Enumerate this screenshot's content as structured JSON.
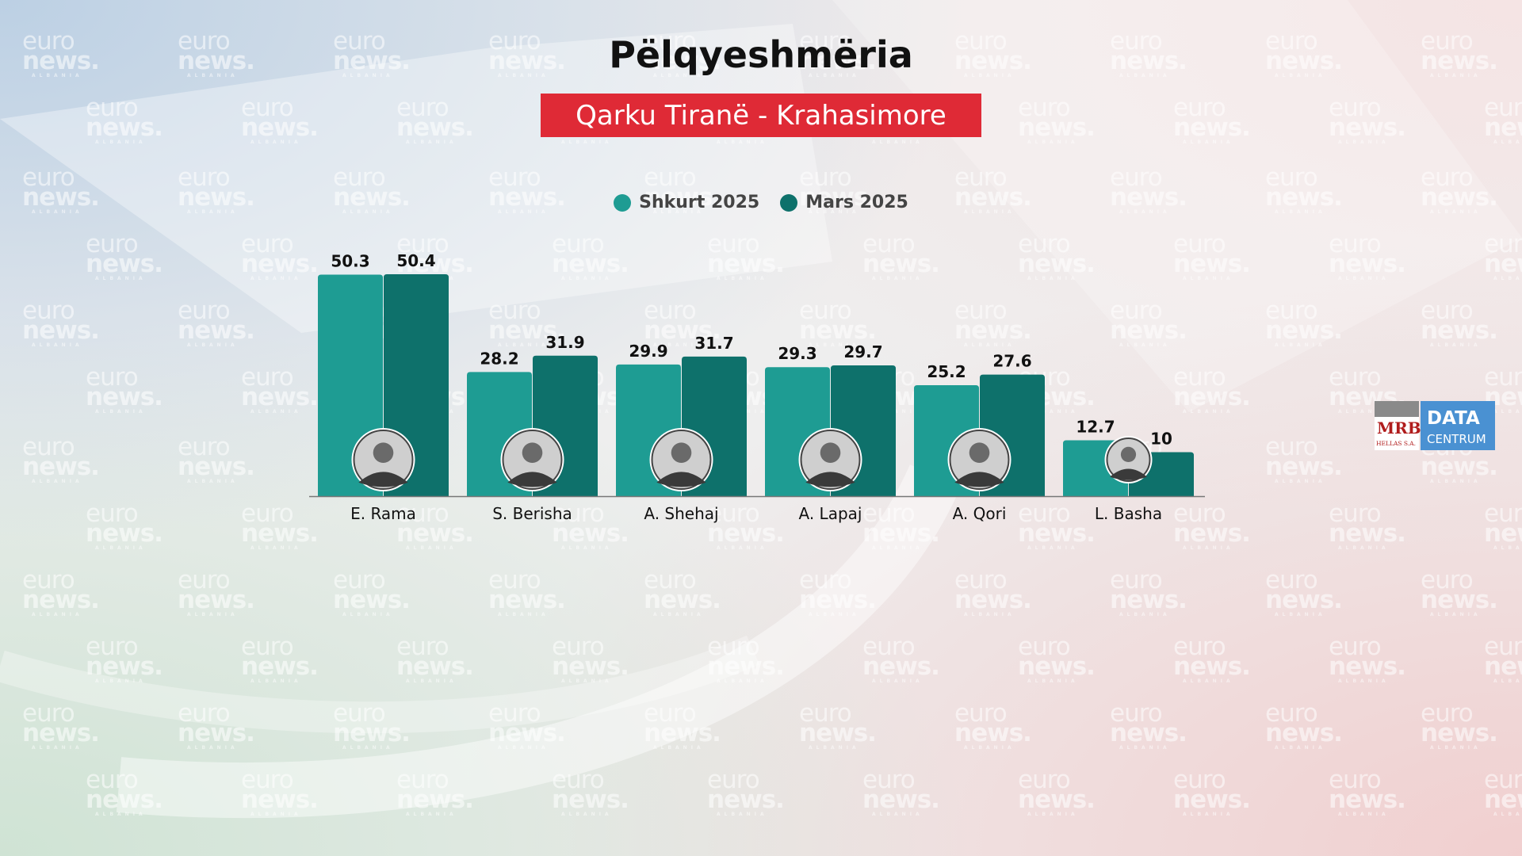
{
  "title": "Pëlqyeshmëria",
  "subtitle": "Qarku Tiranë - Krahasimore",
  "watermark": {
    "line1": "euro",
    "line2": "news.",
    "line3": "ALBANIA"
  },
  "logo": {
    "mrb": "MRB",
    "mrb_sub": "HELLAS S.A.",
    "data": "DATA",
    "centrum": "CENTRUM"
  },
  "colors": {
    "shkurt": "#1e9c93",
    "mars": "#0e716b",
    "subtitle_bg": "#df2a36"
  },
  "chart_data": {
    "type": "bar",
    "categories": [
      "E. Rama",
      "S. Berisha",
      "A. Shehaj",
      "A. Lapaj",
      "A. Qori",
      "L. Basha"
    ],
    "series": [
      {
        "name": "Shkurt 2025",
        "values": [
          50.3,
          28.2,
          29.9,
          29.3,
          25.2,
          12.7
        ]
      },
      {
        "name": "Mars 2025",
        "values": [
          50.4,
          31.9,
          31.7,
          29.7,
          27.6,
          10
        ]
      }
    ],
    "title": "Pëlqyeshmëria",
    "subtitle": "Qarku Tiranë - Krahasimore",
    "xlabel": "",
    "ylabel": "",
    "ylim": [
      0,
      50.4
    ],
    "grid": false,
    "legend": "top-center",
    "value_labels": [
      "50.3",
      "50.4",
      "28.2",
      "31.9",
      "29.9",
      "31.7",
      "29.3",
      "29.7",
      "25.2",
      "27.6",
      "12.7",
      "10"
    ],
    "icons": [
      "portrait-rama",
      "portrait-berisha",
      "portrait-shehaj",
      "portrait-lapaj",
      "portrait-qori",
      "portrait-basha"
    ]
  }
}
